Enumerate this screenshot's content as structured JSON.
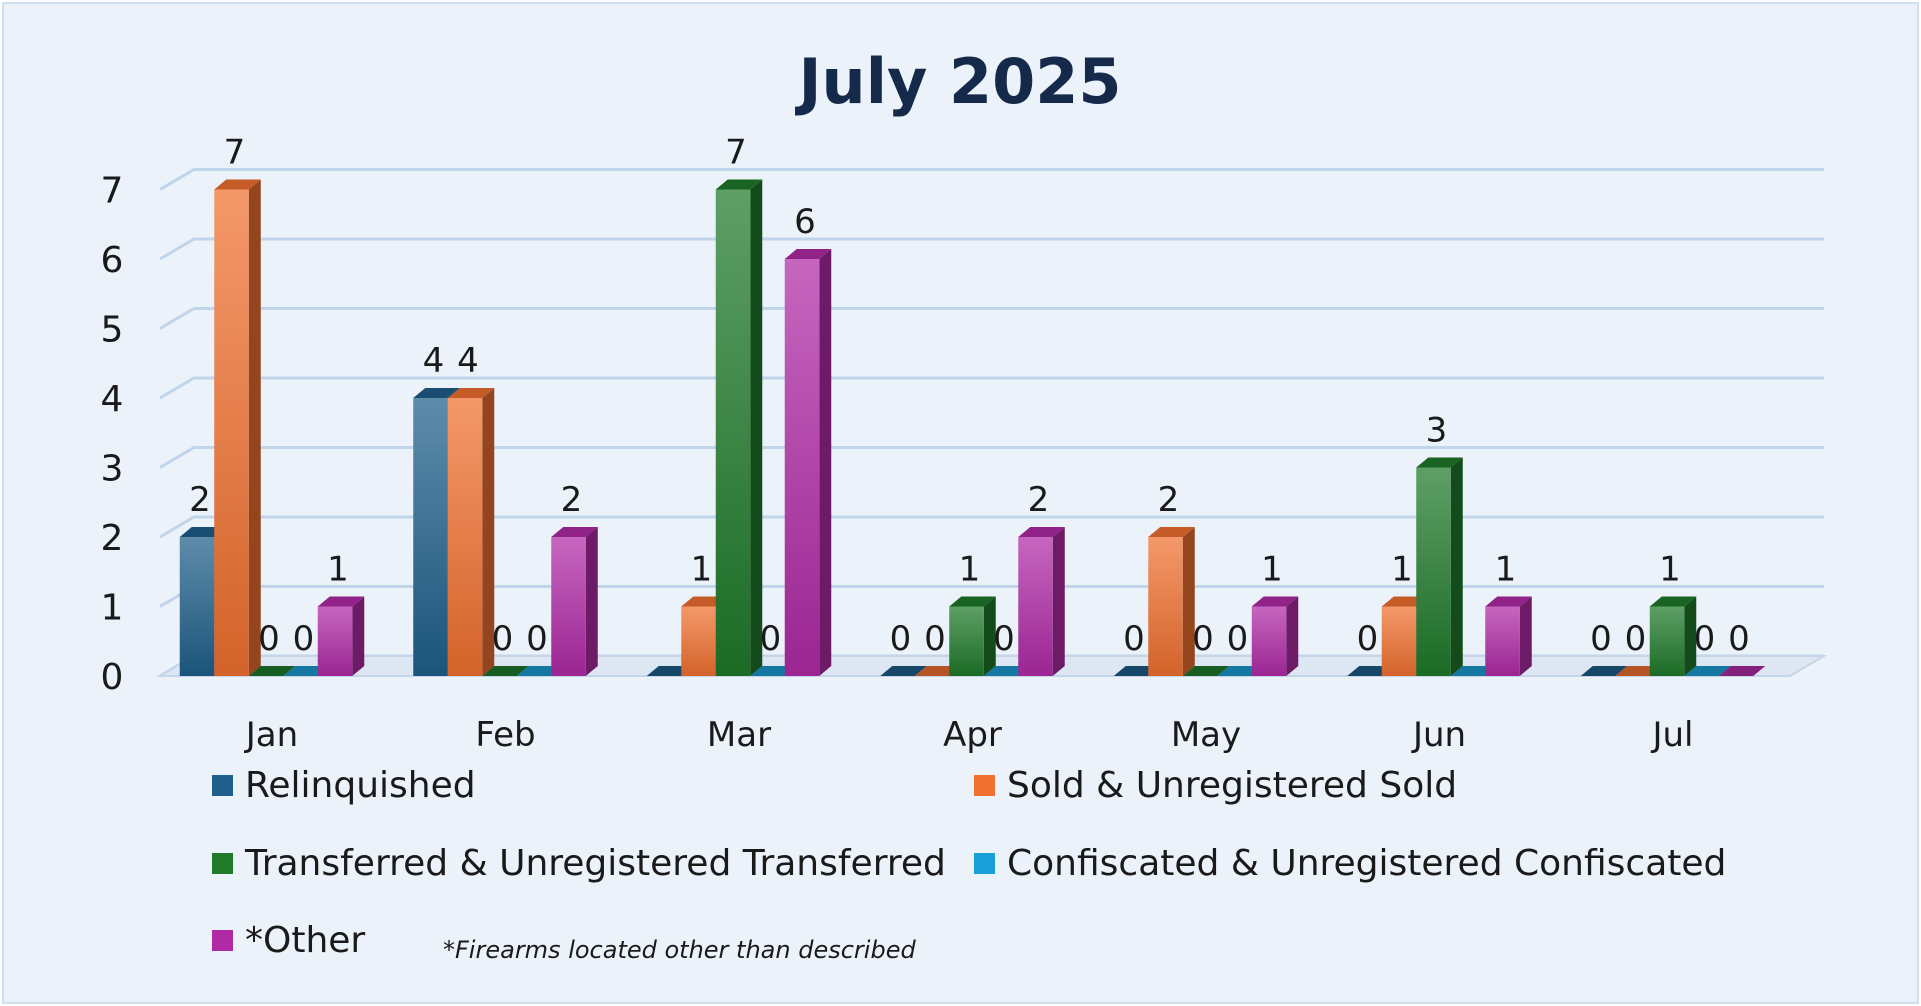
{
  "chart_data": {
    "type": "bar",
    "title": "July 2025",
    "categories": [
      "Jan",
      "Feb",
      "Mar",
      "Apr",
      "May",
      "Jun",
      "Jul"
    ],
    "series": [
      {
        "name": "Relinquished",
        "color": "#1f5f8b",
        "values": [
          2,
          4,
          0,
          0,
          0,
          0,
          0
        ]
      },
      {
        "name": "Sold & Unregistered Sold",
        "color": "#f07030",
        "values": [
          7,
          4,
          1,
          0,
          2,
          1,
          0
        ]
      },
      {
        "name": "Transferred & Unregistered Transferred",
        "color": "#1f7a2a",
        "values": [
          0,
          0,
          7,
          1,
          0,
          3,
          1
        ]
      },
      {
        "name": "Confiscated & Unregistered Confiscated",
        "color": "#1aa0d8",
        "values": [
          0,
          0,
          0,
          0,
          0,
          0,
          0
        ]
      },
      {
        "name": "*Other",
        "color": "#b02aa6",
        "values": [
          1,
          2,
          6,
          2,
          1,
          1,
          0
        ]
      }
    ],
    "ylim": [
      0,
      7
    ],
    "yticks": [
      "0",
      "1",
      "2",
      "3",
      "4",
      "5",
      "6",
      "7"
    ],
    "data_labels": [
      [
        "2",
        "4",
        "",
        "0",
        "0",
        "0",
        "0"
      ],
      [
        "7",
        "4",
        "1",
        "0",
        "2",
        "1",
        "0"
      ],
      [
        "0",
        "0",
        "7",
        "1",
        "0",
        "3",
        "1"
      ],
      [
        "0",
        "0",
        "0",
        "0",
        "0",
        "",
        "0"
      ],
      [
        "1",
        "2",
        "6",
        "2",
        "1",
        "1",
        "0"
      ]
    ],
    "grid": true,
    "legend_position": "bottom"
  },
  "footnote": "*Firearms located other than described"
}
